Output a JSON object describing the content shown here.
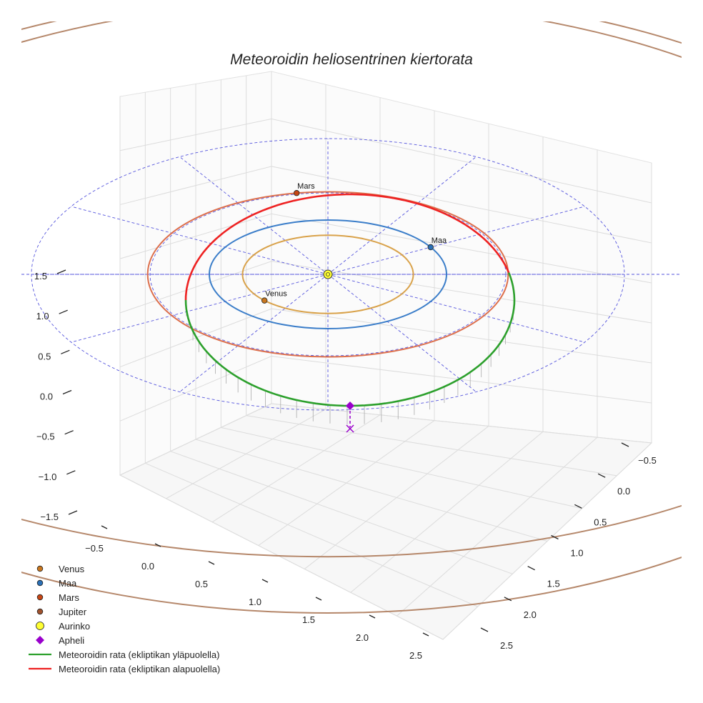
{
  "chart_data": {
    "type": "line",
    "projection": "3d",
    "title": "Meteoroidin heliosentrinen kiertorata",
    "axes": {
      "x_ticks": [
        "−0.5",
        "0.0",
        "0.5",
        "1.0",
        "1.5",
        "2.0",
        "2.5"
      ],
      "y_ticks": [
        "−0.5",
        "0.0",
        "0.5",
        "1.0",
        "1.5",
        "2.0",
        "2.5"
      ],
      "z_ticks": [
        "−1.5",
        "−1.0",
        "−0.5",
        "0.0",
        "0.5",
        "1.0",
        "1.5"
      ],
      "grid": true
    },
    "reference_circles_au": [
      1.5,
      2.5
    ],
    "planets": [
      {
        "name": "Venus",
        "label": "Venus",
        "orbit_radius_au": 0.72,
        "orbit_color": "#d9a24a",
        "marker_color": "#c9771f",
        "angle_deg": 222
      },
      {
        "name": "Maa",
        "label": "Maa",
        "orbit_radius_au": 1.0,
        "orbit_color": "#3a7dc9",
        "marker_color": "#2a6fb5",
        "angle_deg": 30
      },
      {
        "name": "Mars",
        "label": "Mars",
        "orbit_radius_au": 1.52,
        "orbit_color": "#dd6f4c",
        "marker_color": "#c64514",
        "angle_deg": 100
      },
      {
        "name": "Jupiter",
        "label": "",
        "orbit_radius_au": 5.2,
        "orbit_color": "#b5876a",
        "marker_color": "#a0522d"
      }
    ],
    "sun": {
      "name": "Aurinko",
      "color": "#ffff33"
    },
    "aphelion": {
      "name": "Apheli",
      "color": "#9900cc"
    },
    "meteoroid_orbit": {
      "above_ecliptic": {
        "name": "Meteoroidin rata (ekliptikan yläpuolella)",
        "color": "#2ca02c"
      },
      "below_ecliptic": {
        "name": "Meteoroidin rata (ekliptikan alapuolella)",
        "color": "#ee2222"
      }
    },
    "legend": [
      {
        "label": "Venus",
        "marker": "circle",
        "color": "#c9771f"
      },
      {
        "label": "Maa",
        "marker": "circle",
        "color": "#2a6fb5"
      },
      {
        "label": "Mars",
        "marker": "circle",
        "color": "#c64514"
      },
      {
        "label": "Jupiter",
        "marker": "circle",
        "color": "#a0522d"
      },
      {
        "label": "Aurinko",
        "marker": "circle",
        "color": "#ffff33"
      },
      {
        "label": "Apheli",
        "marker": "diamond",
        "color": "#9900cc"
      },
      {
        "label": "Meteoroidin rata (ekliptikan yläpuolella)",
        "marker": "line",
        "color": "#2ca02c"
      },
      {
        "label": "Meteoroidin rata (ekliptikan alapuolella)",
        "marker": "line",
        "color": "#ee2222"
      }
    ],
    "legend_position": "bottom-left"
  }
}
